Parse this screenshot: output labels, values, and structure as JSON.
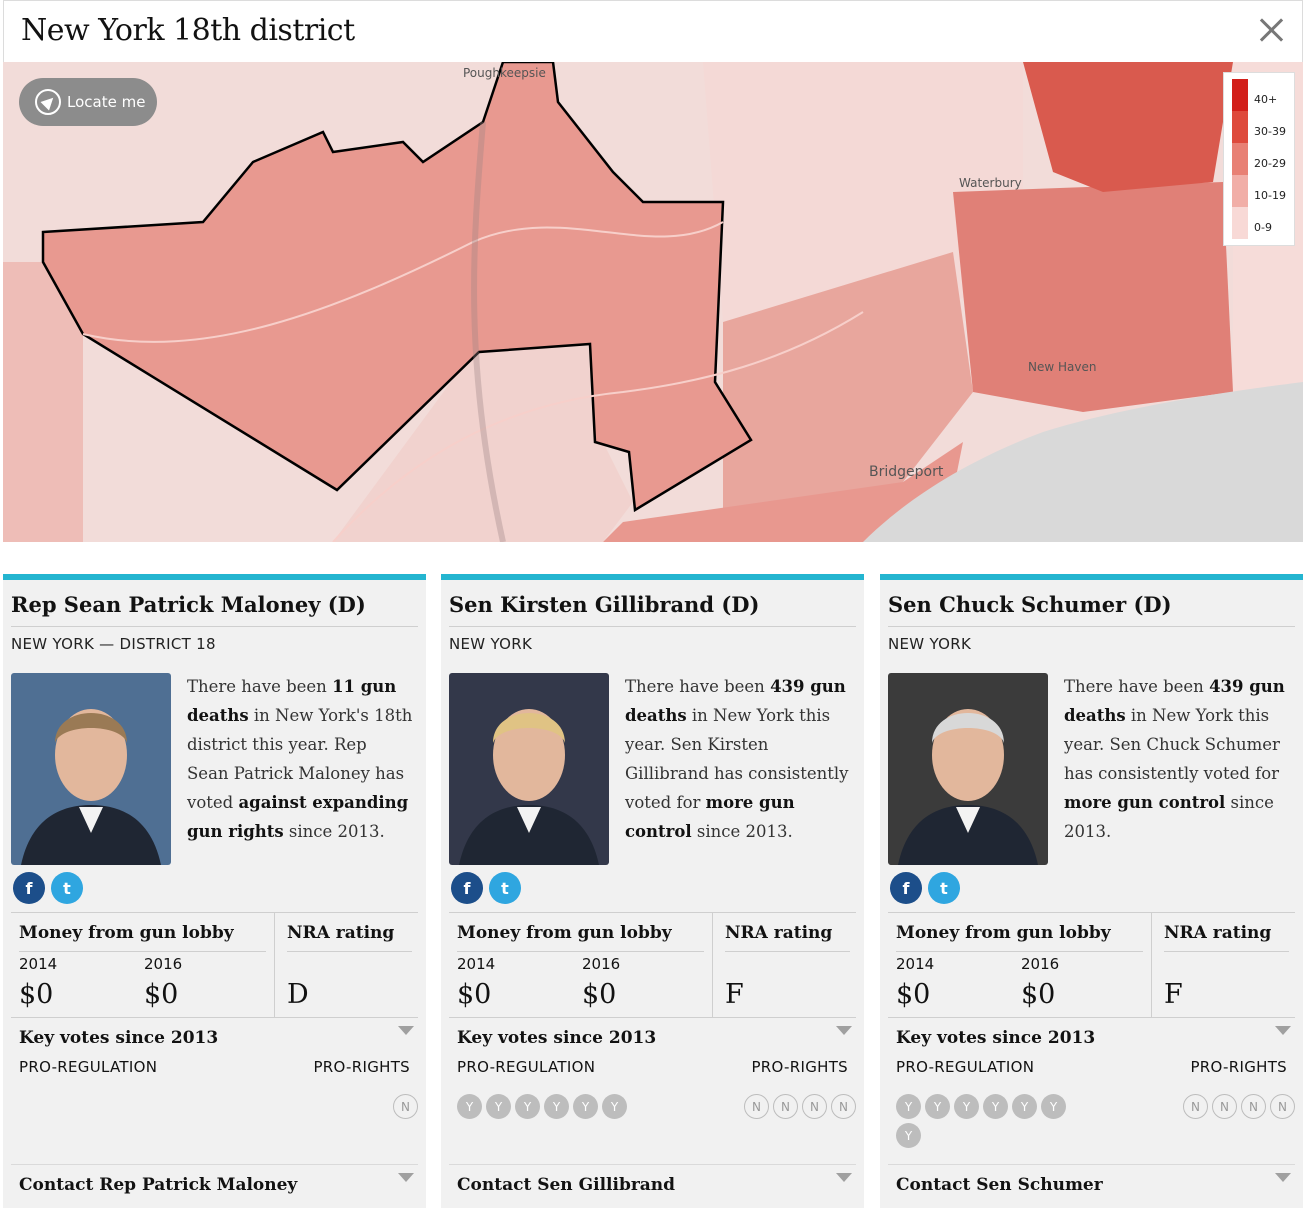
{
  "header": {
    "title": "New York 18th district"
  },
  "map": {
    "locate_label": "Locate me",
    "places": [
      "Poughkeepsie",
      "Waterbury",
      "New Haven",
      "Bridgeport"
    ],
    "legend": [
      {
        "label": "40+",
        "color": "#d21f1a"
      },
      {
        "label": "30-39",
        "color": "#de4a3c"
      },
      {
        "label": "20-29",
        "color": "#e88074"
      },
      {
        "label": "10-19",
        "color": "#f1aea7"
      },
      {
        "label": "0-9",
        "color": "#f8d9d6"
      }
    ]
  },
  "colors": {
    "accent": "#24b5d0",
    "facebook": "#1c4e8a",
    "twitter": "#2fa6e0"
  },
  "labels": {
    "money": "Money from gun lobby",
    "nra": "NRA rating",
    "year1": "2014",
    "year2": "2016",
    "key_votes": "Key votes since 2013",
    "pro_regulation": "PRO-REGULATION",
    "pro_rights": "PRO-RIGHTS"
  },
  "cards": [
    {
      "name": "Rep Sean Patrick Maloney (D)",
      "location": "NEW YORK — DISTRICT 18",
      "bio": {
        "a": "There have been ",
        "b": "11 gun deaths",
        "c": " in New York's 18th district this year. Rep Sean Patrick Maloney has voted ",
        "d": "against expanding gun rights",
        "e": " since 2013."
      },
      "money_2014": "$0",
      "money_2016": "$0",
      "nra": "D",
      "votes_yes": [],
      "votes_no": [
        "N"
      ],
      "contact": "Contact Rep Patrick Maloney"
    },
    {
      "name": "Sen Kirsten Gillibrand (D)",
      "location": "NEW YORK",
      "bio": {
        "a": "There have been ",
        "b": "439 gun deaths",
        "c": " in New York this year. Sen Kirsten Gillibrand has consistently voted for ",
        "d": "more gun control",
        "e": " since 2013."
      },
      "money_2014": "$0",
      "money_2016": "$0",
      "nra": "F",
      "votes_yes": [
        "Y",
        "Y",
        "Y",
        "Y",
        "Y",
        "Y"
      ],
      "votes_no": [
        "N",
        "N",
        "N",
        "N"
      ],
      "contact": "Contact Sen Gillibrand"
    },
    {
      "name": "Sen Chuck Schumer (D)",
      "location": "NEW YORK",
      "bio": {
        "a": "There have been ",
        "b": "439 gun deaths",
        "c": " in New York this year. Sen Chuck Schumer has consistently voted for ",
        "d": "more gun control",
        "e": " since 2013."
      },
      "money_2014": "$0",
      "money_2016": "$0",
      "nra": "F",
      "votes_yes": [
        "Y",
        "Y",
        "Y",
        "Y",
        "Y",
        "Y",
        "Y"
      ],
      "votes_no": [
        "N",
        "N",
        "N",
        "N"
      ],
      "contact": "Contact Sen Schumer"
    }
  ]
}
